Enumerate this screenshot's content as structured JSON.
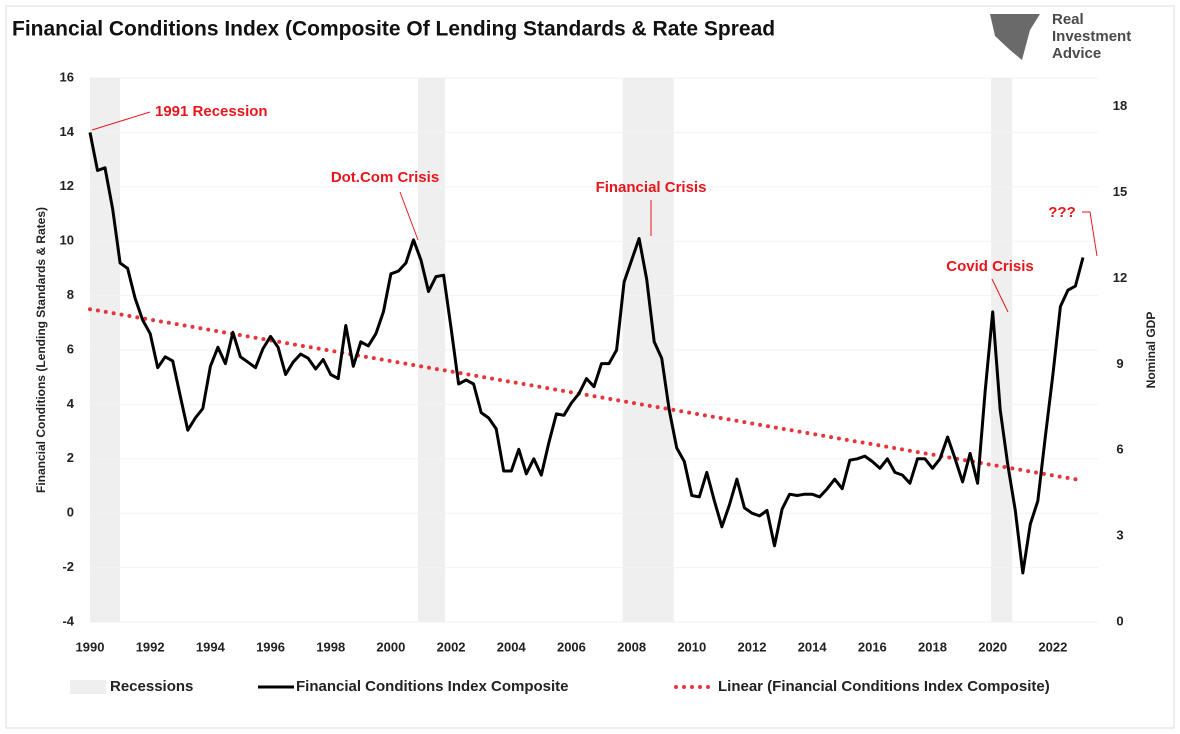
{
  "chart_data": {
    "type": "line",
    "title": "Financial Conditions Index (Composite Of Lending Standards & Rate Spread",
    "logo": [
      "Real",
      "Investment",
      "Advice"
    ],
    "y_label": "Financial Conditions (Lending Standards & Rates)",
    "y2_label": "Nominal GDP",
    "xlim": [
      1990,
      2023.5
    ],
    "xticks": [
      1990,
      1992,
      1994,
      1996,
      1998,
      2000,
      2002,
      2004,
      2006,
      2008,
      2010,
      2012,
      2014,
      2016,
      2018,
      2020,
      2022
    ],
    "ylim": [
      -4,
      16
    ],
    "yticks": [
      -4,
      -2,
      0,
      2,
      4,
      6,
      8,
      10,
      12,
      14,
      16
    ],
    "y2lim": [
      0,
      19
    ],
    "y2ticks": [
      0,
      3,
      6,
      9,
      12,
      15,
      18
    ],
    "grid": true,
    "recessions": {
      "name": "Recessions",
      "color": "#efefef",
      "ranges": [
        [
          1990.0,
          1991.0
        ],
        [
          2000.9,
          2001.8
        ],
        [
          2007.7,
          2009.4
        ],
        [
          2019.95,
          2020.65
        ]
      ]
    },
    "series": [
      {
        "name": "Financial Conditions Index Composite",
        "color": "#000000",
        "style": "solid",
        "x": [
          1990,
          1990.25,
          1990.5,
          1990.75,
          1991,
          1991.25,
          1991.5,
          1991.75,
          1992,
          1992.25,
          1992.5,
          1992.75,
          1993,
          1993.25,
          1993.5,
          1993.75,
          1994,
          1994.25,
          1994.5,
          1994.75,
          1995,
          1995.25,
          1995.5,
          1995.75,
          1996,
          1996.25,
          1996.5,
          1996.75,
          1997,
          1997.25,
          1997.5,
          1997.75,
          1998,
          1998.25,
          1998.5,
          1998.75,
          1999,
          1999.25,
          1999.5,
          1999.75,
          2000,
          2000.25,
          2000.5,
          2000.75,
          2001,
          2001.25,
          2001.5,
          2001.75,
          2002,
          2002.25,
          2002.5,
          2002.75,
          2003,
          2003.25,
          2003.5,
          2003.75,
          2004,
          2004.25,
          2004.5,
          2004.75,
          2005,
          2005.25,
          2005.5,
          2005.75,
          2006,
          2006.25,
          2006.5,
          2006.75,
          2007,
          2007.25,
          2007.5,
          2007.75,
          2008,
          2008.25,
          2008.5,
          2008.75,
          2009,
          2009.25,
          2009.5,
          2009.75,
          2010,
          2010.25,
          2010.5,
          2010.75,
          2011,
          2011.25,
          2011.5,
          2011.75,
          2012,
          2012.25,
          2012.5,
          2012.75,
          2013,
          2013.25,
          2013.5,
          2013.75,
          2014,
          2014.25,
          2014.5,
          2014.75,
          2015,
          2015.25,
          2015.5,
          2015.75,
          2016,
          2016.25,
          2016.5,
          2016.75,
          2017,
          2017.25,
          2017.5,
          2017.75,
          2018,
          2018.25,
          2018.5,
          2018.75,
          2019,
          2019.25,
          2019.5,
          2019.75,
          2020,
          2020.25,
          2020.5,
          2020.75,
          2021,
          2021.25,
          2021.5,
          2021.75,
          2022,
          2022.25,
          2022.5,
          2022.75,
          2023
        ],
        "values": [
          14,
          12.6,
          12.7,
          11.2,
          9.2,
          9.0,
          7.9,
          7.1,
          6.6,
          5.35,
          5.75,
          5.6,
          4.3,
          3.05,
          3.5,
          3.85,
          5.4,
          6.1,
          5.5,
          6.65,
          5.75,
          5.55,
          5.35,
          6.05,
          6.5,
          6.1,
          5.1,
          5.55,
          5.85,
          5.7,
          5.3,
          5.65,
          5.1,
          4.95,
          6.9,
          5.4,
          6.3,
          6.15,
          6.6,
          7.4,
          8.8,
          8.9,
          9.2,
          10.05,
          9.3,
          8.15,
          8.7,
          8.75,
          6.8,
          4.75,
          4.9,
          4.75,
          3.7,
          3.5,
          3.1,
          1.55,
          1.55,
          2.35,
          1.45,
          2.0,
          1.4,
          2.6,
          3.65,
          3.6,
          4.05,
          4.4,
          4.95,
          4.65,
          5.5,
          5.5,
          6.0,
          8.5,
          9.3,
          10.1,
          8.6,
          6.3,
          5.7,
          3.8,
          2.4,
          1.9,
          0.65,
          0.6,
          1.5,
          0.45,
          -0.5,
          0.3,
          1.25,
          0.2,
          0.0,
          -0.1,
          0.1,
          -1.2,
          0.15,
          0.7,
          0.65,
          0.7,
          0.7,
          0.6,
          0.9,
          1.25,
          0.9,
          1.95,
          2.0,
          2.1,
          1.9,
          1.65,
          2.0,
          1.5,
          1.4,
          1.1,
          2.0,
          2.0,
          1.65,
          2.0,
          2.8,
          2.0,
          1.15,
          2.2,
          1.1,
          4.5,
          7.4,
          3.8,
          1.8,
          0.1,
          -2.2,
          -0.4,
          0.45,
          2.8,
          5.1,
          7.6,
          8.2,
          8.35,
          9.4
        ]
      },
      {
        "name": "Linear (Financial Conditions Index Composite)",
        "color": "#e8343a",
        "style": "dotted",
        "x": [
          1990,
          2023
        ],
        "values": [
          7.5,
          1.2
        ]
      }
    ],
    "annotations": [
      "1991 Recession",
      "Dot.Com Crisis",
      "Financial Crisis",
      "Covid Crisis",
      "???"
    ]
  }
}
